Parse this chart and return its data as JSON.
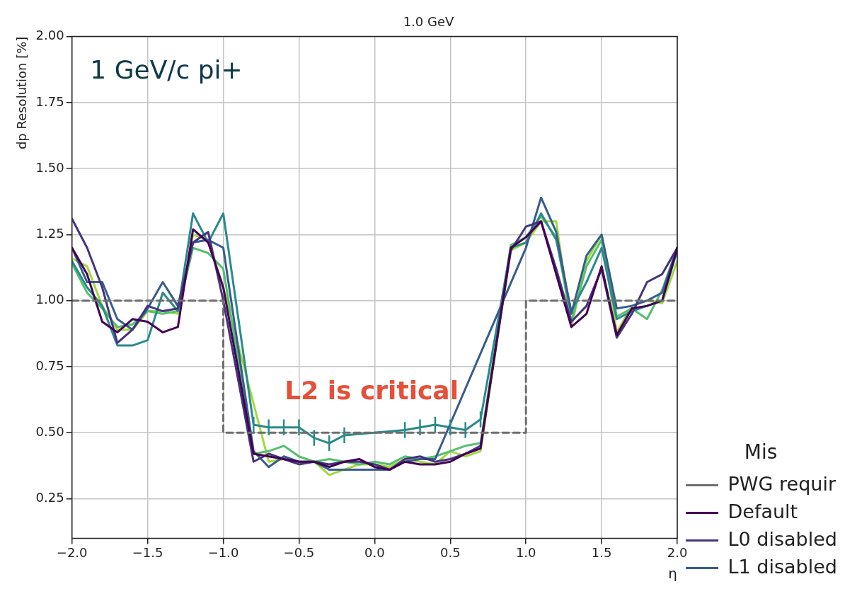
{
  "chart_data": {
    "type": "line",
    "title": "1.0 GeV",
    "xlabel": "η",
    "ylabel": "dp Resolution [%]",
    "legend_title": "Mis",
    "annotations": [
      "1 GeV/c pi+",
      "L2 is critical"
    ],
    "x": [
      -2.0,
      -1.9,
      -1.8,
      -1.7,
      -1.6,
      -1.5,
      -1.4,
      -1.3,
      -1.2,
      -1.1,
      -1.0,
      -0.9,
      -0.8,
      -0.7,
      -0.6,
      -0.5,
      -0.4,
      -0.3,
      -0.2,
      -0.1,
      0.0,
      0.1,
      0.2,
      0.3,
      0.4,
      0.5,
      0.6,
      0.7,
      0.8,
      0.9,
      1.0,
      1.1,
      1.2,
      1.3,
      1.4,
      1.5,
      1.6,
      1.7,
      1.8,
      1.9,
      2.0
    ],
    "series": [
      {
        "name": "PWG requir",
        "type": "step",
        "line_style": "dashed",
        "color": "#6e6e6e",
        "x": [
          -2,
          -1,
          1,
          2
        ],
        "values": [
          1.0,
          0.5,
          1.0,
          1.0
        ]
      },
      {
        "name": "Default",
        "color": "#440154",
        "values": [
          1.2,
          1.1,
          0.92,
          0.88,
          0.93,
          0.92,
          0.88,
          0.9,
          1.27,
          1.22,
          1.05,
          null,
          0.42,
          0.41,
          0.4,
          0.39,
          0.39,
          0.37,
          0.39,
          0.4,
          0.37,
          0.36,
          0.39,
          0.38,
          0.38,
          0.39,
          0.42,
          0.44,
          null,
          1.2,
          1.24,
          1.3,
          1.1,
          0.9,
          0.95,
          1.13,
          0.87,
          0.97,
          0.98,
          1.0,
          1.2
        ]
      },
      {
        "name": "L0 disabled",
        "color": "#46337f",
        "values": [
          1.31,
          1.2,
          1.05,
          0.84,
          0.89,
          0.98,
          0.96,
          0.97,
          1.22,
          1.26,
          1.0,
          null,
          0.39,
          0.42,
          0.4,
          0.38,
          0.39,
          0.38,
          0.39,
          0.39,
          0.38,
          0.36,
          0.4,
          0.41,
          0.39,
          0.4,
          0.42,
          0.45,
          null,
          1.19,
          1.28,
          1.3,
          1.12,
          0.92,
          0.98,
          1.12,
          0.86,
          0.95,
          1.07,
          1.1,
          1.2
        ]
      },
      {
        "name": "L1 disabled",
        "color": "#365c8d",
        "values": [
          1.2,
          1.07,
          1.07,
          0.93,
          0.89,
          0.97,
          1.07,
          0.98,
          1.22,
          1.23,
          1.2,
          null,
          0.43,
          0.37,
          0.41,
          0.39,
          0.39,
          0.36,
          0.36,
          0.36,
          0.36,
          0.36,
          0.39,
          0.4,
          0.4,
          null,
          null,
          null,
          null,
          null,
          1.2,
          1.39,
          1.26,
          0.95,
          1.17,
          1.25,
          0.97,
          0.98,
          1.0,
          1.03,
          1.2
        ]
      },
      {
        "color": "#2a8a8a",
        "values": [
          1.15,
          1.05,
          0.98,
          0.83,
          0.83,
          0.85,
          1.03,
          0.96,
          1.33,
          1.22,
          1.33,
          null,
          0.53,
          0.52,
          0.52,
          0.52,
          0.48,
          0.46,
          0.49,
          null,
          null,
          null,
          0.51,
          0.52,
          0.53,
          0.52,
          0.51,
          0.55,
          null,
          1.2,
          1.22,
          1.33,
          1.23,
          0.96,
          1.07,
          1.2,
          0.93,
          0.96,
          0.98,
          1.0,
          1.19
        ],
        "errors": [
          null,
          null,
          null,
          null,
          null,
          null,
          null,
          null,
          null,
          null,
          null,
          null,
          0.03,
          0.03,
          0.03,
          0.03,
          0.03,
          0.03,
          0.03,
          null,
          null,
          null,
          0.03,
          0.03,
          0.03,
          0.03,
          0.03,
          0.03,
          null,
          null,
          null,
          null,
          null,
          null,
          null,
          null,
          null,
          null,
          null,
          null,
          null
        ]
      },
      {
        "color": "#55bf6e",
        "values": [
          1.14,
          1.03,
          0.97,
          0.9,
          0.91,
          0.96,
          0.95,
          0.96,
          1.2,
          1.18,
          1.12,
          null,
          0.42,
          0.43,
          0.45,
          0.41,
          0.39,
          0.4,
          0.39,
          0.38,
          0.39,
          0.38,
          0.41,
          0.4,
          0.41,
          0.43,
          0.45,
          0.46,
          null,
          1.21,
          1.24,
          1.32,
          1.24,
          0.92,
          1.13,
          1.23,
          0.94,
          0.97,
          0.93,
          1.04,
          1.2
        ]
      },
      {
        "color": "#a3d93f",
        "values": [
          1.16,
          1.13,
          0.98,
          0.89,
          0.89,
          0.96,
          0.96,
          0.95,
          1.25,
          1.23,
          1.05,
          null,
          null,
          0.39,
          0.4,
          0.39,
          0.39,
          0.34,
          0.36,
          0.38,
          0.38,
          0.37,
          0.4,
          0.39,
          0.38,
          0.43,
          0.41,
          0.43,
          null,
          1.19,
          1.22,
          1.3,
          1.3,
          0.9,
          1.15,
          1.25,
          0.88,
          0.98,
          1.0,
          0.99,
          1.15
        ]
      }
    ],
    "xlim": [
      -2,
      2
    ],
    "xticks": [
      {
        "value": -2,
        "label": "−2.0"
      },
      {
        "value": -1.5,
        "label": "−1.5"
      },
      {
        "value": -1,
        "label": "−1.0"
      },
      {
        "value": -0.5,
        "label": "−0.5"
      },
      {
        "value": 0,
        "label": "0.0"
      },
      {
        "value": 0.5,
        "label": "0.5"
      },
      {
        "value": 1,
        "label": "1.0"
      },
      {
        "value": 1.5,
        "label": "1.5"
      },
      {
        "value": 2,
        "label": "2.0"
      }
    ],
    "ylim": [
      0.1,
      2.0
    ],
    "yticks": [
      {
        "value": 0.25,
        "label": "0.25"
      },
      {
        "value": 0.5,
        "label": "0.50"
      },
      {
        "value": 0.75,
        "label": "0.75"
      },
      {
        "value": 1,
        "label": "1.00"
      },
      {
        "value": 1.25,
        "label": "1.25"
      },
      {
        "value": 1.5,
        "label": "1.50"
      },
      {
        "value": 1.75,
        "label": "1.75"
      },
      {
        "value": 2,
        "label": "2.00"
      }
    ],
    "grid": true,
    "legend": "bottom right",
    "marker": "none",
    "line_style": "solid"
  }
}
